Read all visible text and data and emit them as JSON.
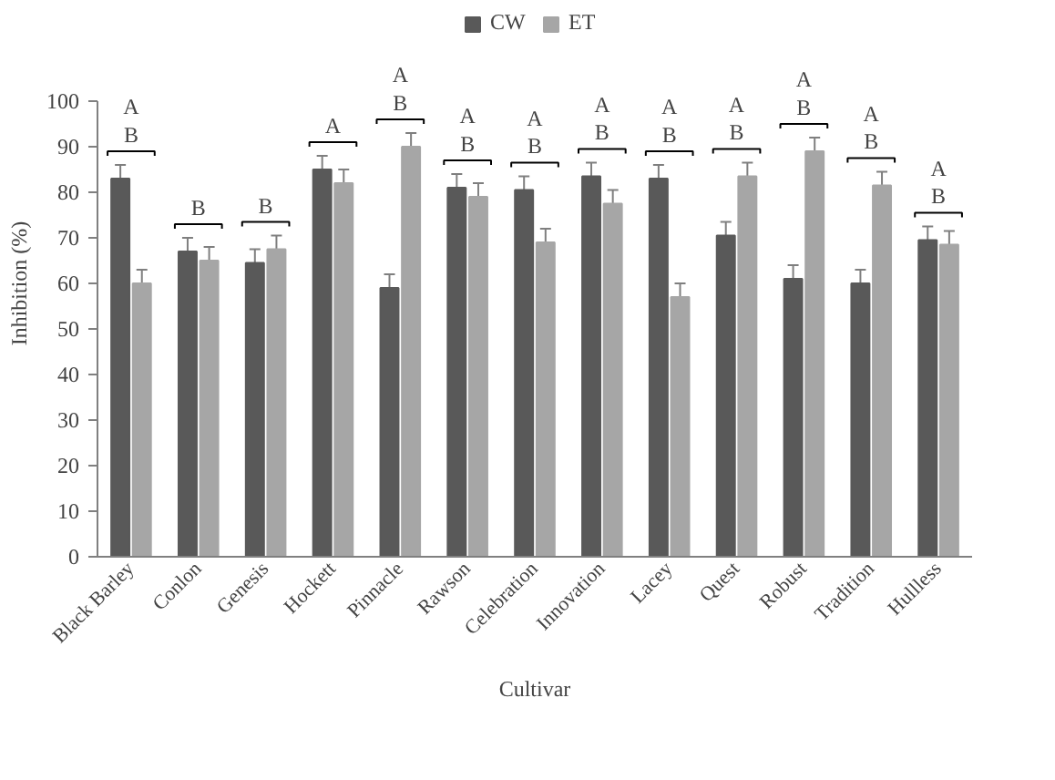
{
  "chart_data": {
    "type": "bar",
    "xlabel": "Cultivar",
    "ylabel": "Inhibition (%)",
    "categories": [
      "Black Barley",
      "Conlon",
      "Genesis",
      "Hockett",
      "Pinnacle",
      "Rawson",
      "Celebration",
      "Innovation",
      "Lacey",
      "Quest",
      "Robust",
      "Tradition",
      "Hullless"
    ],
    "series": [
      {
        "name": "CW",
        "color": "#595959",
        "values": [
          83,
          67,
          64.5,
          85,
          59,
          81,
          80.5,
          83.5,
          83,
          70.5,
          61,
          60,
          69.5
        ],
        "errors": [
          3,
          3,
          3,
          3,
          3,
          3,
          3,
          3,
          3,
          3,
          3,
          3,
          3
        ]
      },
      {
        "name": "ET",
        "color": "#a6a6a6",
        "values": [
          60,
          65,
          67.5,
          82,
          90,
          79,
          69,
          77.5,
          57,
          83.5,
          89,
          81.5,
          68.5
        ],
        "errors": [
          3,
          3,
          3,
          3,
          3,
          3,
          3,
          3,
          3,
          3,
          3,
          3,
          3
        ]
      }
    ],
    "ylim": [
      0,
      100
    ],
    "yticks": [
      0,
      10,
      20,
      30,
      40,
      50,
      60,
      70,
      80,
      90,
      100
    ],
    "grid": false,
    "legend": "top",
    "annotations": [
      "A\nB",
      "B",
      "B",
      "A",
      "A\nB",
      "A\nB",
      "A\nB",
      "A\nB",
      "A\nB",
      "A\nB",
      "A\nB",
      "A\nB",
      "A\nB"
    ]
  }
}
